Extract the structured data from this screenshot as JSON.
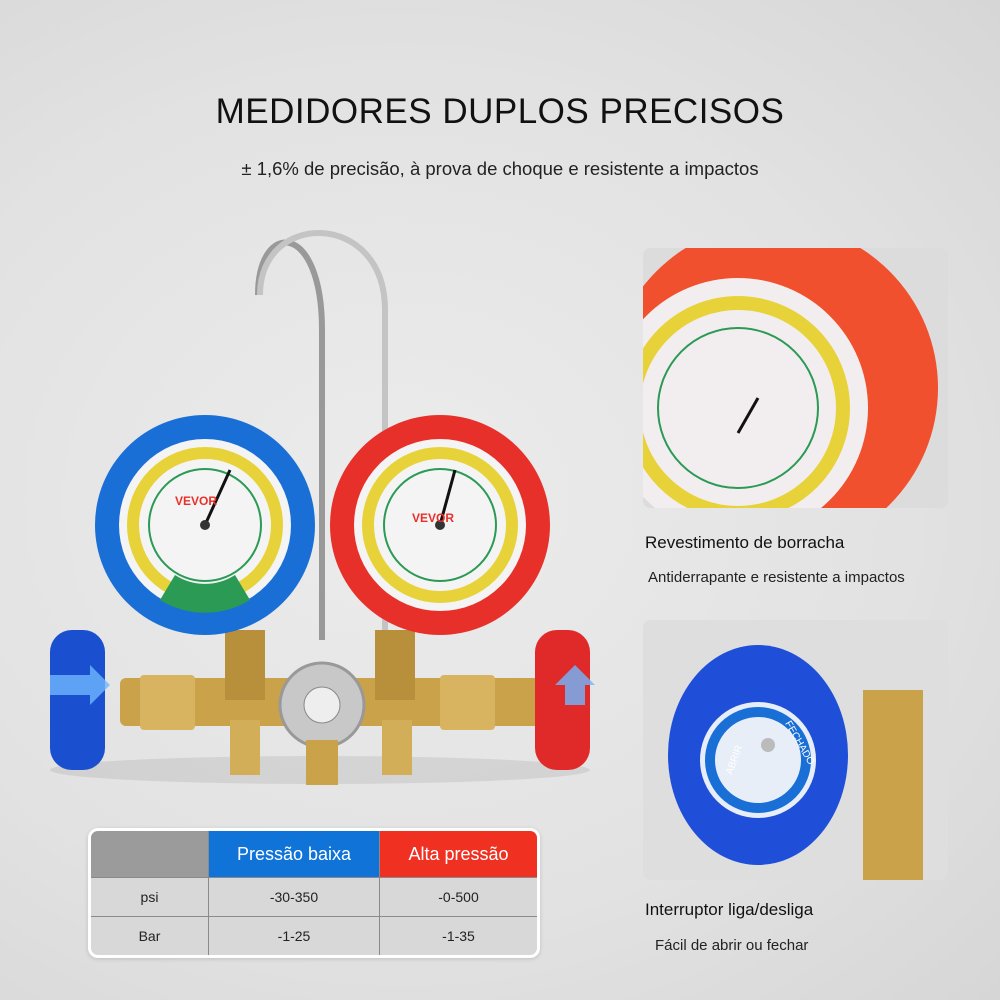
{
  "header": {
    "title": "MEDIDORES DUPLOS PRECISOS",
    "subtitle": "± 1,6% de precisão, à prova de choque e resistente a impactos"
  },
  "product": {
    "brand": "VEVOR",
    "low_gauge_color": "#1a6fd6",
    "high_gauge_color": "#e8302a",
    "brass_color": "#c9a24a"
  },
  "features": [
    {
      "title": "Revestimento de borracha",
      "description": "Antiderrapante e resistente a impactos"
    },
    {
      "title": "Interruptor liga/desliga",
      "description": "Fácil de abrir ou fechar",
      "knob_labels": [
        "ABRIR",
        "FECHADO"
      ]
    }
  ],
  "spec_table": {
    "headers": [
      "",
      "Pressão baixa",
      "Alta pressão"
    ],
    "rows": [
      [
        "psi",
        "-30-350",
        "-0-500"
      ],
      [
        "Bar",
        "-1-25",
        "-1-35"
      ]
    ]
  }
}
